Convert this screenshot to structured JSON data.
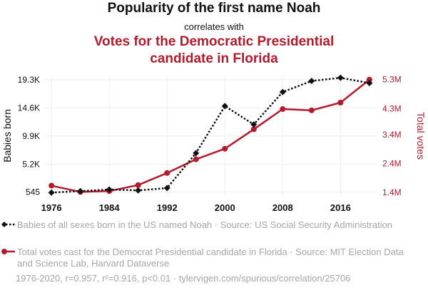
{
  "header": {
    "title": "Popularity of the first name Noah",
    "connector": "correlates with",
    "subtitle_line1": "Votes for the Democratic Presidential",
    "subtitle_line2": "candidate in Florida"
  },
  "colors": {
    "series1": "#111111",
    "series2": "#b31b2d",
    "axis_text": "#111111",
    "footer_text": "#a6a6a6"
  },
  "chart_data": {
    "type": "line",
    "x": [
      1976,
      1980,
      1984,
      1988,
      1992,
      1996,
      2000,
      2004,
      2008,
      2012,
      2016,
      2020
    ],
    "x_ticks": [
      1976,
      1984,
      1992,
      2000,
      2008,
      2016
    ],
    "x_range": [
      1975,
      2021
    ],
    "series": [
      {
        "name": "Babies of all sexes born in the US named Noah",
        "axis": "left",
        "style": "dotted",
        "marker": "diamond",
        "values": [
          462,
          700,
          977,
          826,
          1217,
          7050,
          14894,
          11836,
          17251,
          19090,
          19627,
          18739
        ]
      },
      {
        "name": "Total votes cast for the Democrat Presidential candidate in Florida",
        "axis": "right",
        "style": "solid",
        "marker": "circle",
        "values": [
          1636000,
          1419475,
          1448816,
          1656701,
          2072698,
          2546870,
          2912253,
          3583544,
          4282367,
          4237756,
          4504975,
          5297045
        ]
      }
    ],
    "left_axis": {
      "label": "Babies born",
      "ylim": [
        -100,
        20000
      ],
      "ticks": [
        545,
        5200,
        9900,
        14600,
        19300
      ],
      "tick_labels": [
        "545",
        "5.2K",
        "9.9K",
        "14.6K",
        "19.3K"
      ]
    },
    "right_axis": {
      "label": "Total votes",
      "ylim": [
        1280000,
        5440000
      ],
      "ticks": [
        1400000,
        2400000,
        3400000,
        4300000,
        5300000
      ],
      "tick_labels": [
        "1.4M",
        "2.4M",
        "3.4M",
        "4.3M",
        "5.3M"
      ]
    }
  },
  "legend": {
    "item1": "Babies of all sexes born in the US named Noah · Source: US Social Security Administration",
    "item2": "Total votes cast for the Democrat Presidential candidate in Florida · Source: MIT Election Data and Science Lab, Harvard Dataverse"
  },
  "footer": "1976-2020, r=0.957, r²=0.916, p<0.01 · tylervigen.com/spurious/correlation/25706"
}
